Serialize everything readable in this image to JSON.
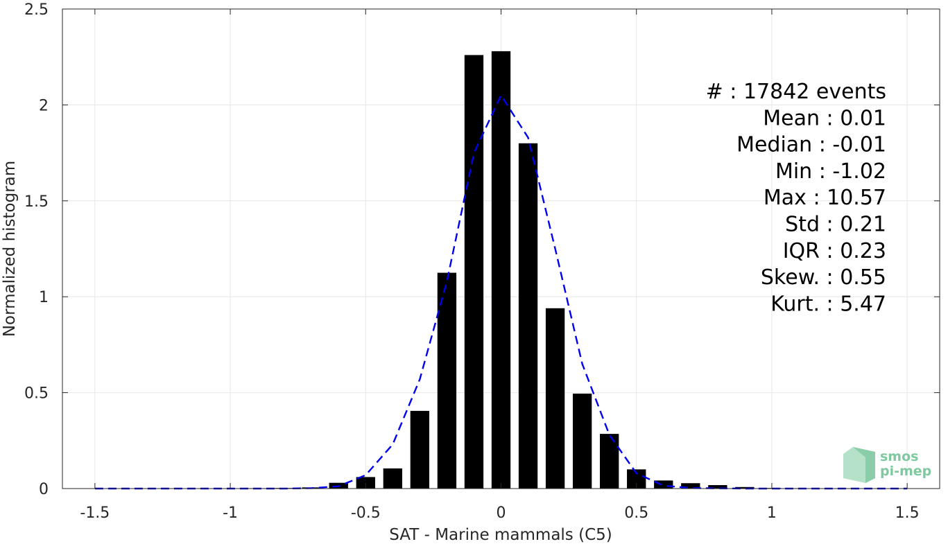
{
  "chart_data": {
    "type": "bar",
    "xlabel": "SAT - Marine mammals (C5)",
    "ylabel": "Normalized histogram",
    "xlim": [
      -1.62,
      1.62
    ],
    "ylim": [
      0,
      2.5
    ],
    "xticks": [
      -1.5,
      -1,
      -0.5,
      0,
      0.5,
      1,
      1.5
    ],
    "xtick_labels": [
      "-1.5",
      "-1",
      "-0.5",
      "0",
      "0.5",
      "1",
      "1.5"
    ],
    "yticks": [
      0,
      0.5,
      1,
      1.5,
      2,
      2.5
    ],
    "ytick_labels": [
      "0",
      "0.5",
      "1",
      "1.5",
      "2",
      "2.5"
    ],
    "grid": true,
    "bin_width": 0.1,
    "bar_width": 0.07,
    "bars": {
      "x": [
        -1.5,
        -1.4,
        -1.3,
        -1.2,
        -1.1,
        -1.0,
        -0.9,
        -0.8,
        -0.7,
        -0.6,
        -0.5,
        -0.4,
        -0.3,
        -0.2,
        -0.1,
        0.0,
        0.1,
        0.2,
        0.3,
        0.4,
        0.5,
        0.6,
        0.7,
        0.8,
        0.9,
        1.0,
        1.1,
        1.2,
        1.3,
        1.4,
        1.5
      ],
      "values": [
        0,
        0,
        0,
        0,
        0,
        0.001,
        0.002,
        0.003,
        0.006,
        0.03,
        0.06,
        0.105,
        0.405,
        1.125,
        2.26,
        2.28,
        1.8,
        0.94,
        0.495,
        0.285,
        0.1,
        0.042,
        0.028,
        0.018,
        0.008,
        0.003,
        0.002,
        0.001,
        0.001,
        0,
        0
      ]
    },
    "series": [
      {
        "style": "dashed",
        "color": "#0000ee",
        "x": [
          -1.5,
          -1.4,
          -1.3,
          -1.2,
          -1.1,
          -1.0,
          -0.9,
          -0.8,
          -0.7,
          -0.6,
          -0.5,
          -0.4,
          -0.3,
          -0.2,
          -0.1,
          0.0,
          0.1,
          0.2,
          0.3,
          0.4,
          0.5,
          0.6,
          0.7,
          0.8,
          0.9,
          1.0,
          1.1,
          1.2,
          1.3,
          1.4,
          1.5
        ],
        "values": [
          0,
          0,
          0,
          0,
          0,
          0,
          0,
          0,
          0.002,
          0.012,
          0.07,
          0.23,
          0.57,
          1.08,
          1.75,
          2.05,
          1.83,
          1.25,
          0.65,
          0.28,
          0.08,
          0.015,
          0.003,
          0.001,
          0,
          0,
          0,
          0,
          0,
          0,
          0
        ]
      }
    ],
    "annotations": [
      "#  : 17842 events",
      "Mean : 0.01",
      "Median : -0.01",
      "Min : -1.02",
      "Max : 10.57",
      "Std : 0.21",
      "IQR : 0.23",
      "Skew. : 0.55",
      "Kurt. : 5.47"
    ]
  },
  "logo": {
    "line1": "smos",
    "line2": "pi-mep"
  },
  "colors": {
    "bars": "#000000",
    "fit_line": "#0000ee",
    "grid": "#e6e6e6",
    "axis": "#262626",
    "logo": "#7fc8a0"
  }
}
